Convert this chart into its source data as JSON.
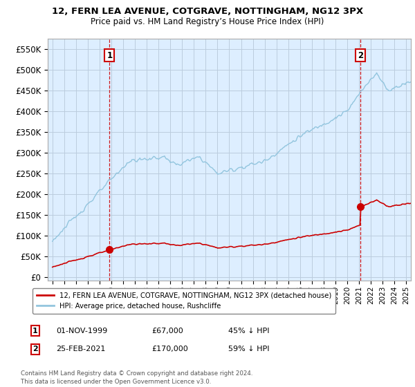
{
  "title": "12, FERN LEA AVENUE, COTGRAVE, NOTTINGHAM, NG12 3PX",
  "subtitle": "Price paid vs. HM Land Registry’s House Price Index (HPI)",
  "yticks": [
    0,
    50000,
    100000,
    150000,
    200000,
    250000,
    300000,
    350000,
    400000,
    450000,
    500000,
    550000
  ],
  "ylim": [
    -8000,
    575000
  ],
  "xlim_left": 1994.6,
  "xlim_right": 2025.4,
  "sale1_t": 1999.84,
  "sale1_price": 67000,
  "sale2_t": 2021.14,
  "sale2_price": 170000,
  "hpi_color": "#92c5de",
  "price_color": "#cc0000",
  "background_color": "#ffffff",
  "plot_bg_color": "#ddeeff",
  "grid_color": "#bbccdd",
  "legend_label_price": "12, FERN LEA AVENUE, COTGRAVE, NOTTINGHAM, NG12 3PX (detached house)",
  "legend_label_hpi": "HPI: Average price, detached house, Rushcliffe",
  "footnote": "Contains HM Land Registry data © Crown copyright and database right 2024.\nThis data is licensed under the Open Government Licence v3.0."
}
